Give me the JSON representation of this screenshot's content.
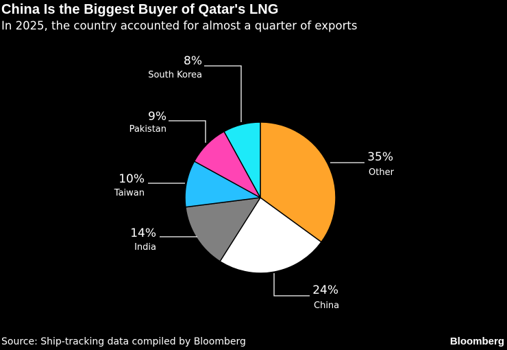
{
  "header": {
    "title": "China Is the Biggest Buyer of Qatar's LNG",
    "subtitle": "In 2025, the country accounted for almost a quarter of exports"
  },
  "footer": {
    "source": "Source: Ship-tracking data compiled by Bloomberg",
    "brand": "Bloomberg"
  },
  "chart_data": {
    "type": "pie",
    "title": "China Is the Biggest Buyer of Qatar's LNG",
    "subtitle": "In 2025, the country accounted for almost a quarter of exports",
    "slices": [
      {
        "label": "Other",
        "value": 35,
        "value_label": "35%",
        "color": "#FFA42A"
      },
      {
        "label": "China",
        "value": 24,
        "value_label": "24%",
        "color": "#FFFFFF"
      },
      {
        "label": "India",
        "value": 14,
        "value_label": "14%",
        "color": "#808080"
      },
      {
        "label": "Taiwan",
        "value": 10,
        "value_label": "10%",
        "color": "#27C0FF"
      },
      {
        "label": "Pakistan",
        "value": 9,
        "value_label": "9%",
        "color": "#FF44B4"
      },
      {
        "label": "South Korea",
        "value": 8,
        "value_label": "8%",
        "color": "#1DEAF9"
      }
    ],
    "start": "12 o'clock",
    "direction": "clockwise"
  }
}
